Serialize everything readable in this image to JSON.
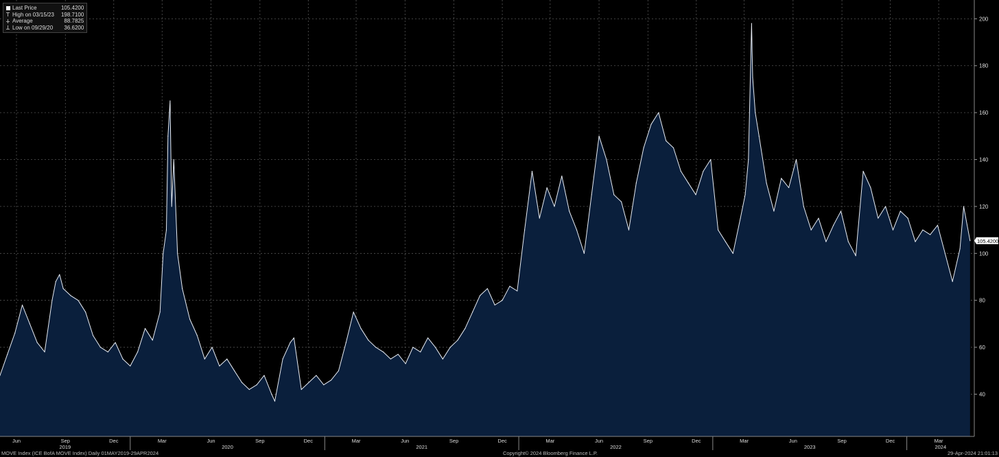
{
  "legend": {
    "last_label": "Last Price",
    "last_value": "105.4200",
    "high_label": "High on 03/15/23",
    "high_value": "198.7100",
    "avg_label": "Average",
    "avg_value": "88.7825",
    "low_label": "Low on 09/29/20",
    "low_value": "36.6200"
  },
  "footer": {
    "left": "MOVE Index (ICE BofA MOVE Index)  Daily 01MAY2019-29APR2024",
    "center": "Copyright© 2024 Bloomberg Finance L.P.",
    "right": "29-Apr-2024 21:01:13"
  },
  "colors": {
    "line": "#e8edf5",
    "fill": "#0a1f3c",
    "background": "#000000",
    "grid": "#555555"
  },
  "chart_data": {
    "type": "area",
    "series": [
      {
        "name": "MOVE Index (ICE BofA MOVE Index)",
        "x": [
          "2019-05-01",
          "2019-05-15",
          "2019-05-29",
          "2019-06-12",
          "2019-06-26",
          "2019-07-10",
          "2019-07-24",
          "2019-08-07",
          "2019-08-14",
          "2019-08-21",
          "2019-08-28",
          "2019-09-11",
          "2019-09-25",
          "2019-10-09",
          "2019-10-23",
          "2019-11-06",
          "2019-11-20",
          "2019-12-04",
          "2019-12-18",
          "2020-01-01",
          "2020-01-15",
          "2020-01-29",
          "2020-02-12",
          "2020-02-26",
          "2020-03-03",
          "2020-03-09",
          "2020-03-12",
          "2020-03-16",
          "2020-03-19",
          "2020-03-23",
          "2020-03-30",
          "2020-04-08",
          "2020-04-22",
          "2020-05-06",
          "2020-05-20",
          "2020-06-03",
          "2020-06-17",
          "2020-07-01",
          "2020-07-15",
          "2020-07-29",
          "2020-08-12",
          "2020-08-26",
          "2020-09-09",
          "2020-09-23",
          "2020-09-29",
          "2020-10-14",
          "2020-10-28",
          "2020-11-04",
          "2020-11-18",
          "2020-12-02",
          "2020-12-16",
          "2020-12-30",
          "2021-01-13",
          "2021-01-27",
          "2021-02-10",
          "2021-02-24",
          "2021-03-10",
          "2021-03-24",
          "2021-04-07",
          "2021-04-21",
          "2021-05-05",
          "2021-05-19",
          "2021-06-02",
          "2021-06-16",
          "2021-06-30",
          "2021-07-14",
          "2021-07-28",
          "2021-08-11",
          "2021-08-25",
          "2021-09-08",
          "2021-09-22",
          "2021-10-06",
          "2021-10-20",
          "2021-11-03",
          "2021-11-17",
          "2021-12-01",
          "2021-12-15",
          "2021-12-29",
          "2022-01-12",
          "2022-01-26",
          "2022-02-09",
          "2022-02-23",
          "2022-03-09",
          "2022-03-23",
          "2022-04-06",
          "2022-04-20",
          "2022-05-04",
          "2022-05-18",
          "2022-06-01",
          "2022-06-15",
          "2022-06-29",
          "2022-07-13",
          "2022-07-27",
          "2022-08-10",
          "2022-08-24",
          "2022-09-07",
          "2022-09-21",
          "2022-10-05",
          "2022-10-19",
          "2022-11-02",
          "2022-11-16",
          "2022-11-30",
          "2022-12-14",
          "2022-12-28",
          "2023-01-11",
          "2023-01-25",
          "2023-02-08",
          "2023-02-22",
          "2023-03-03",
          "2023-03-09",
          "2023-03-15",
          "2023-03-17",
          "2023-03-22",
          "2023-03-29",
          "2023-04-12",
          "2023-04-26",
          "2023-05-10",
          "2023-05-24",
          "2023-06-07",
          "2023-06-21",
          "2023-07-05",
          "2023-07-19",
          "2023-08-02",
          "2023-08-16",
          "2023-08-30",
          "2023-09-13",
          "2023-09-27",
          "2023-10-11",
          "2023-10-25",
          "2023-11-08",
          "2023-11-22",
          "2023-12-06",
          "2023-12-20",
          "2024-01-03",
          "2024-01-17",
          "2024-01-31",
          "2024-02-14",
          "2024-02-28",
          "2024-03-13",
          "2024-03-27",
          "2024-04-10",
          "2024-04-17",
          "2024-04-29"
        ],
        "values": [
          48,
          57,
          66,
          78,
          70,
          62,
          58,
          80,
          88,
          91,
          85,
          82,
          80,
          75,
          65,
          60,
          58,
          62,
          55,
          52,
          58,
          68,
          63,
          75,
          100,
          110,
          150,
          165,
          120,
          140,
          100,
          85,
          72,
          65,
          55,
          60,
          52,
          55,
          50,
          45,
          42,
          44,
          48,
          40,
          37,
          55,
          62,
          64,
          42,
          45,
          48,
          44,
          46,
          50,
          62,
          75,
          68,
          63,
          60,
          58,
          55,
          57,
          53,
          60,
          58,
          64,
          60,
          55,
          60,
          63,
          68,
          75,
          82,
          85,
          78,
          80,
          86,
          84,
          110,
          135,
          115,
          128,
          120,
          133,
          118,
          110,
          100,
          125,
          150,
          140,
          125,
          122,
          110,
          130,
          145,
          155,
          160,
          148,
          145,
          135,
          130,
          125,
          135,
          140,
          110,
          105,
          100,
          115,
          125,
          140,
          198,
          175,
          160,
          150,
          130,
          118,
          132,
          128,
          140,
          120,
          110,
          115,
          105,
          112,
          118,
          105,
          99,
          135,
          128,
          115,
          120,
          110,
          118,
          115,
          105,
          110,
          108,
          112,
          100,
          88,
          102,
          120,
          105.42
        ],
        "x_ticks": [
          "Jun",
          "Sep",
          "Dec",
          "Mar",
          "Jun",
          "Sep",
          "Dec",
          "Mar",
          "Jun",
          "Sep",
          "Dec",
          "Mar",
          "Jun",
          "Sep",
          "Dec",
          "Mar",
          "Jun",
          "Sep",
          "Dec",
          "Mar"
        ],
        "year_labels": [
          "2019",
          "2020",
          "2021",
          "2022",
          "2023",
          "2024"
        ]
      }
    ],
    "ylim": [
      22,
      208
    ],
    "y_ticks": [
      40,
      60,
      80,
      100,
      120,
      140,
      160,
      180,
      200
    ],
    "last_value_label": "105.4200",
    "grid": true,
    "legend_position": "top-left",
    "title": "",
    "xlabel": "",
    "ylabel": ""
  }
}
